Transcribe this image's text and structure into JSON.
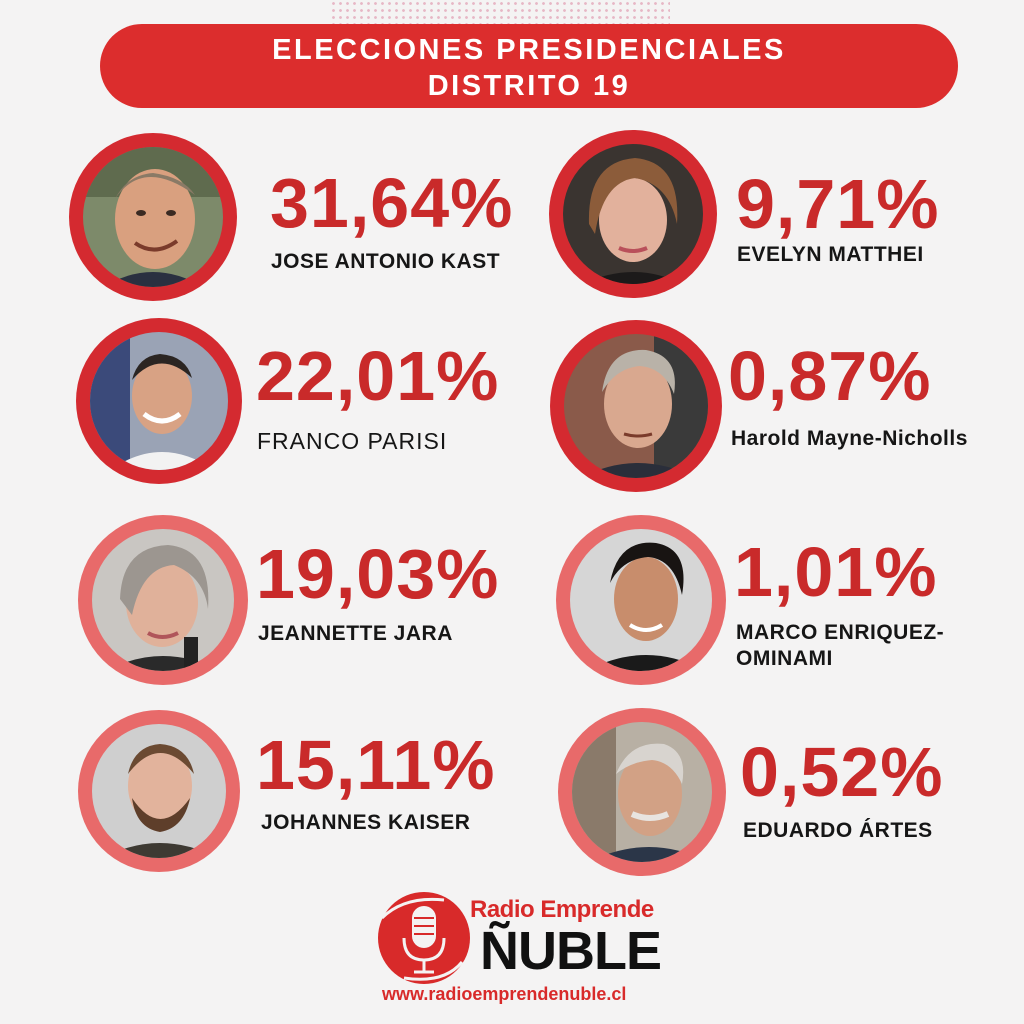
{
  "header": {
    "title_line1": "ELECCIONES PRESIDENCIALES",
    "title_line2": "DISTRITO 19"
  },
  "candidates": [
    {
      "percent": "31,64%",
      "name": "JOSE ANTONIO KAST"
    },
    {
      "percent": "22,01%",
      "name": "FRANCO PARISI"
    },
    {
      "percent": "19,03%",
      "name": "JEANNETTE JARA"
    },
    {
      "percent": "15,11%",
      "name": "JOHANNES KAISER"
    },
    {
      "percent": "9,71%",
      "name": "EVELYN MATTHEI"
    },
    {
      "percent": "0,87%",
      "name": "Harold Mayne-Nicholls"
    },
    {
      "percent": "1,01%",
      "name_line1": "MARCO ENRIQUEZ-",
      "name_line2": "OMINAMI"
    },
    {
      "percent": "0,52%",
      "name": "EDUARDO ÁRTES"
    }
  ],
  "footer": {
    "brand_top": "Radio Emprende",
    "brand_bottom": "ÑUBLE",
    "url": "www.radioemprendenuble.cl"
  },
  "colors": {
    "accent_red": "#dc2d2d",
    "percent_red": "#c92a2a",
    "ring_dark": "#d42a30",
    "ring_light": "#e86a6a",
    "background": "#f4f3f3"
  },
  "icons": [
    "microphone-icon"
  ]
}
